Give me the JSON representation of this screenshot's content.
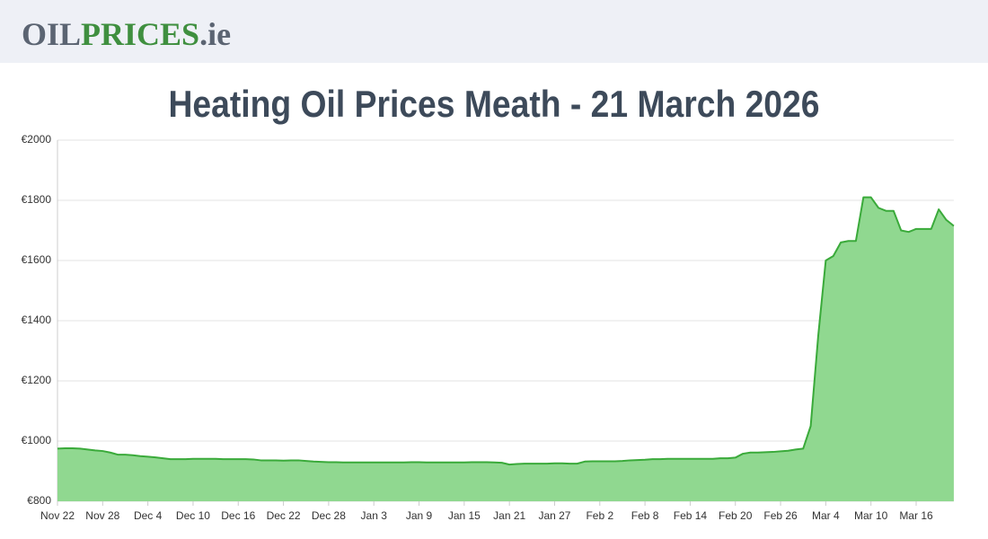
{
  "header": {
    "logo": [
      "OIL",
      "PRICES",
      ".ie"
    ]
  },
  "chart_data": {
    "type": "area",
    "title": "Heating Oil Prices Meath - 21 March 2026",
    "categories": [
      "Nov 22",
      null,
      null,
      null,
      null,
      null,
      "Nov 28",
      null,
      null,
      null,
      null,
      null,
      "Dec 4",
      null,
      null,
      null,
      null,
      null,
      "Dec 10",
      null,
      null,
      null,
      null,
      null,
      "Dec 16",
      null,
      null,
      null,
      null,
      null,
      "Dec 22",
      null,
      null,
      null,
      null,
      null,
      "Dec 28",
      null,
      null,
      null,
      null,
      null,
      "Jan 3",
      null,
      null,
      null,
      null,
      null,
      "Jan 9",
      null,
      null,
      null,
      null,
      null,
      "Jan 15",
      null,
      null,
      null,
      null,
      null,
      "Jan 21",
      null,
      null,
      null,
      null,
      null,
      "Jan 27",
      null,
      null,
      null,
      null,
      null,
      "Feb 2",
      null,
      null,
      null,
      null,
      null,
      "Feb 8",
      null,
      null,
      null,
      null,
      null,
      "Feb 14",
      null,
      null,
      null,
      null,
      null,
      "Feb 20",
      null,
      null,
      null,
      null,
      null,
      "Feb 26",
      null,
      null,
      null,
      null,
      null,
      "Mar 4",
      null,
      null,
      null,
      null,
      null,
      "Mar 10",
      null,
      null,
      null,
      null,
      null,
      "Mar 16",
      null,
      null,
      null,
      null,
      null
    ],
    "values": [
      975,
      976,
      976,
      975,
      972,
      969,
      967,
      962,
      955,
      955,
      953,
      950,
      948,
      946,
      943,
      940,
      940,
      940,
      941,
      941,
      941,
      941,
      940,
      940,
      940,
      940,
      939,
      936,
      936,
      936,
      935,
      936,
      936,
      934,
      932,
      931,
      930,
      930,
      929,
      929,
      929,
      929,
      929,
      929,
      929,
      929,
      929,
      930,
      930,
      929,
      929,
      929,
      929,
      929,
      929,
      930,
      930,
      930,
      929,
      928,
      922,
      924,
      925,
      925,
      925,
      925,
      926,
      926,
      925,
      925,
      932,
      933,
      933,
      933,
      933,
      934,
      936,
      937,
      938,
      940,
      940,
      941,
      941,
      941,
      941,
      941,
      941,
      941,
      943,
      943,
      945,
      958,
      962,
      962,
      963,
      964,
      966,
      968,
      972,
      975,
      1050,
      1350,
      1600,
      1615,
      1660,
      1665,
      1665,
      1810,
      1810,
      1775,
      1765,
      1765,
      1700,
      1695,
      1705,
      1705,
      1705,
      1770,
      1735,
      1715
    ],
    "color": "#3aaa3a",
    "fill": "#90d890",
    "ylim": [
      800,
      2000
    ],
    "yticks": [
      {
        "value": 800,
        "label": "€800"
      },
      {
        "value": 1000,
        "label": "€1000"
      },
      {
        "value": 1200,
        "label": "€1200"
      },
      {
        "value": 1400,
        "label": "€1400"
      },
      {
        "value": 1600,
        "label": "€1600"
      },
      {
        "value": 1800,
        "label": "€1800"
      },
      {
        "value": 2000,
        "label": "€2000"
      }
    ],
    "grid": true
  }
}
